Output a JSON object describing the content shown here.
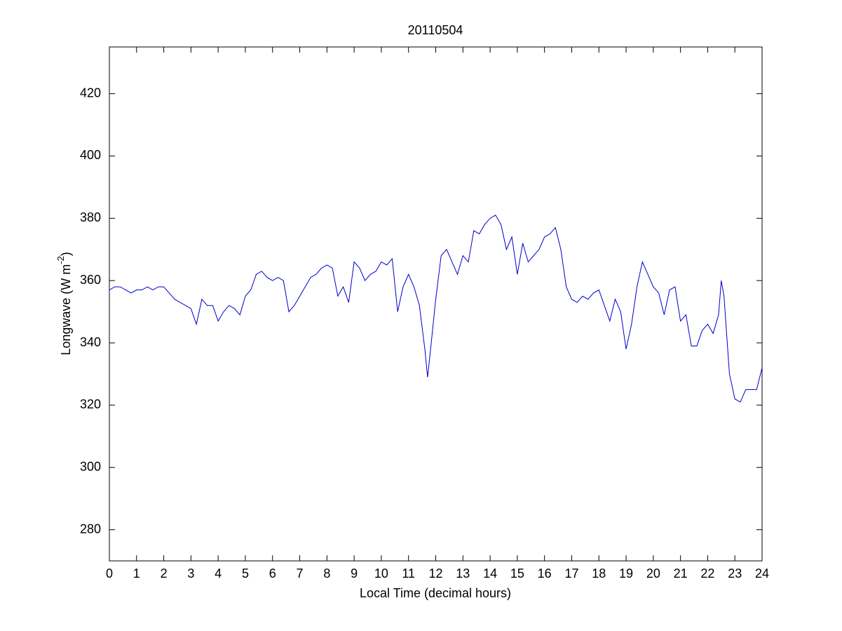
{
  "chart_data": {
    "type": "line",
    "title": "20110504",
    "xlabel": "Local Time (decimal hours)",
    "ylabel": "Longwave (W m",
    "ylabel_sup": "-2",
    "ylabel_end": ")",
    "xlim": [
      0,
      24
    ],
    "xticks": [
      0,
      1,
      2,
      3,
      4,
      5,
      6,
      7,
      8,
      9,
      10,
      11,
      12,
      13,
      14,
      15,
      16,
      17,
      18,
      19,
      20,
      21,
      22,
      23,
      24
    ],
    "ylim": [
      270,
      435
    ],
    "yticks": [
      280,
      300,
      320,
      340,
      360,
      380,
      400,
      420
    ],
    "grid": false,
    "series": [
      {
        "color": "#0000cc",
        "x": [
          0,
          0.2,
          0.4,
          0.6,
          0.8,
          1.0,
          1.2,
          1.4,
          1.6,
          1.8,
          2.0,
          2.2,
          2.4,
          2.6,
          2.8,
          3.0,
          3.2,
          3.4,
          3.6,
          3.8,
          4.0,
          4.2,
          4.4,
          4.6,
          4.8,
          5.0,
          5.2,
          5.4,
          5.6,
          5.8,
          6.0,
          6.2,
          6.4,
          6.6,
          6.8,
          7.0,
          7.2,
          7.4,
          7.6,
          7.8,
          8.0,
          8.2,
          8.4,
          8.6,
          8.8,
          9.0,
          9.2,
          9.4,
          9.6,
          9.8,
          10.0,
          10.2,
          10.4,
          10.6,
          10.8,
          11.0,
          11.2,
          11.4,
          11.6,
          11.7,
          11.8,
          12.0,
          12.2,
          12.4,
          12.6,
          12.8,
          13.0,
          13.2,
          13.4,
          13.6,
          13.8,
          14.0,
          14.2,
          14.4,
          14.6,
          14.8,
          15.0,
          15.2,
          15.4,
          15.6,
          15.8,
          16.0,
          16.2,
          16.4,
          16.6,
          16.8,
          17.0,
          17.2,
          17.4,
          17.6,
          17.8,
          18.0,
          18.2,
          18.4,
          18.6,
          18.8,
          19.0,
          19.2,
          19.4,
          19.6,
          19.8,
          20.0,
          20.2,
          20.4,
          20.6,
          20.8,
          21.0,
          21.2,
          21.4,
          21.6,
          21.8,
          22.0,
          22.2,
          22.4,
          22.5,
          22.6,
          22.8,
          23.0,
          23.2,
          23.4,
          23.6,
          23.8,
          24.0
        ],
        "values": [
          357,
          358,
          358,
          357,
          356,
          357,
          357,
          358,
          357,
          358,
          358,
          356,
          354,
          353,
          352,
          351,
          346,
          354,
          352,
          352,
          347,
          350,
          352,
          351,
          349,
          355,
          357,
          362,
          363,
          361,
          360,
          361,
          360,
          350,
          352,
          355,
          358,
          361,
          362,
          364,
          365,
          364,
          355,
          358,
          353,
          366,
          364,
          360,
          362,
          363,
          366,
          365,
          367,
          350,
          358,
          362,
          358,
          352,
          338,
          329,
          337,
          354,
          368,
          370,
          366,
          362,
          368,
          366,
          376,
          375,
          378,
          380,
          381,
          378,
          370,
          374,
          362,
          372,
          366,
          368,
          370,
          374,
          375,
          377,
          370,
          358,
          354,
          353,
          355,
          354,
          356,
          357,
          352,
          347,
          354,
          350,
          338,
          346,
          358,
          366,
          362,
          358,
          356,
          349,
          357,
          358,
          347,
          349,
          339,
          339,
          344,
          346,
          343,
          349,
          360,
          355,
          330,
          322,
          321,
          325,
          325,
          325,
          332
        ]
      }
    ]
  }
}
